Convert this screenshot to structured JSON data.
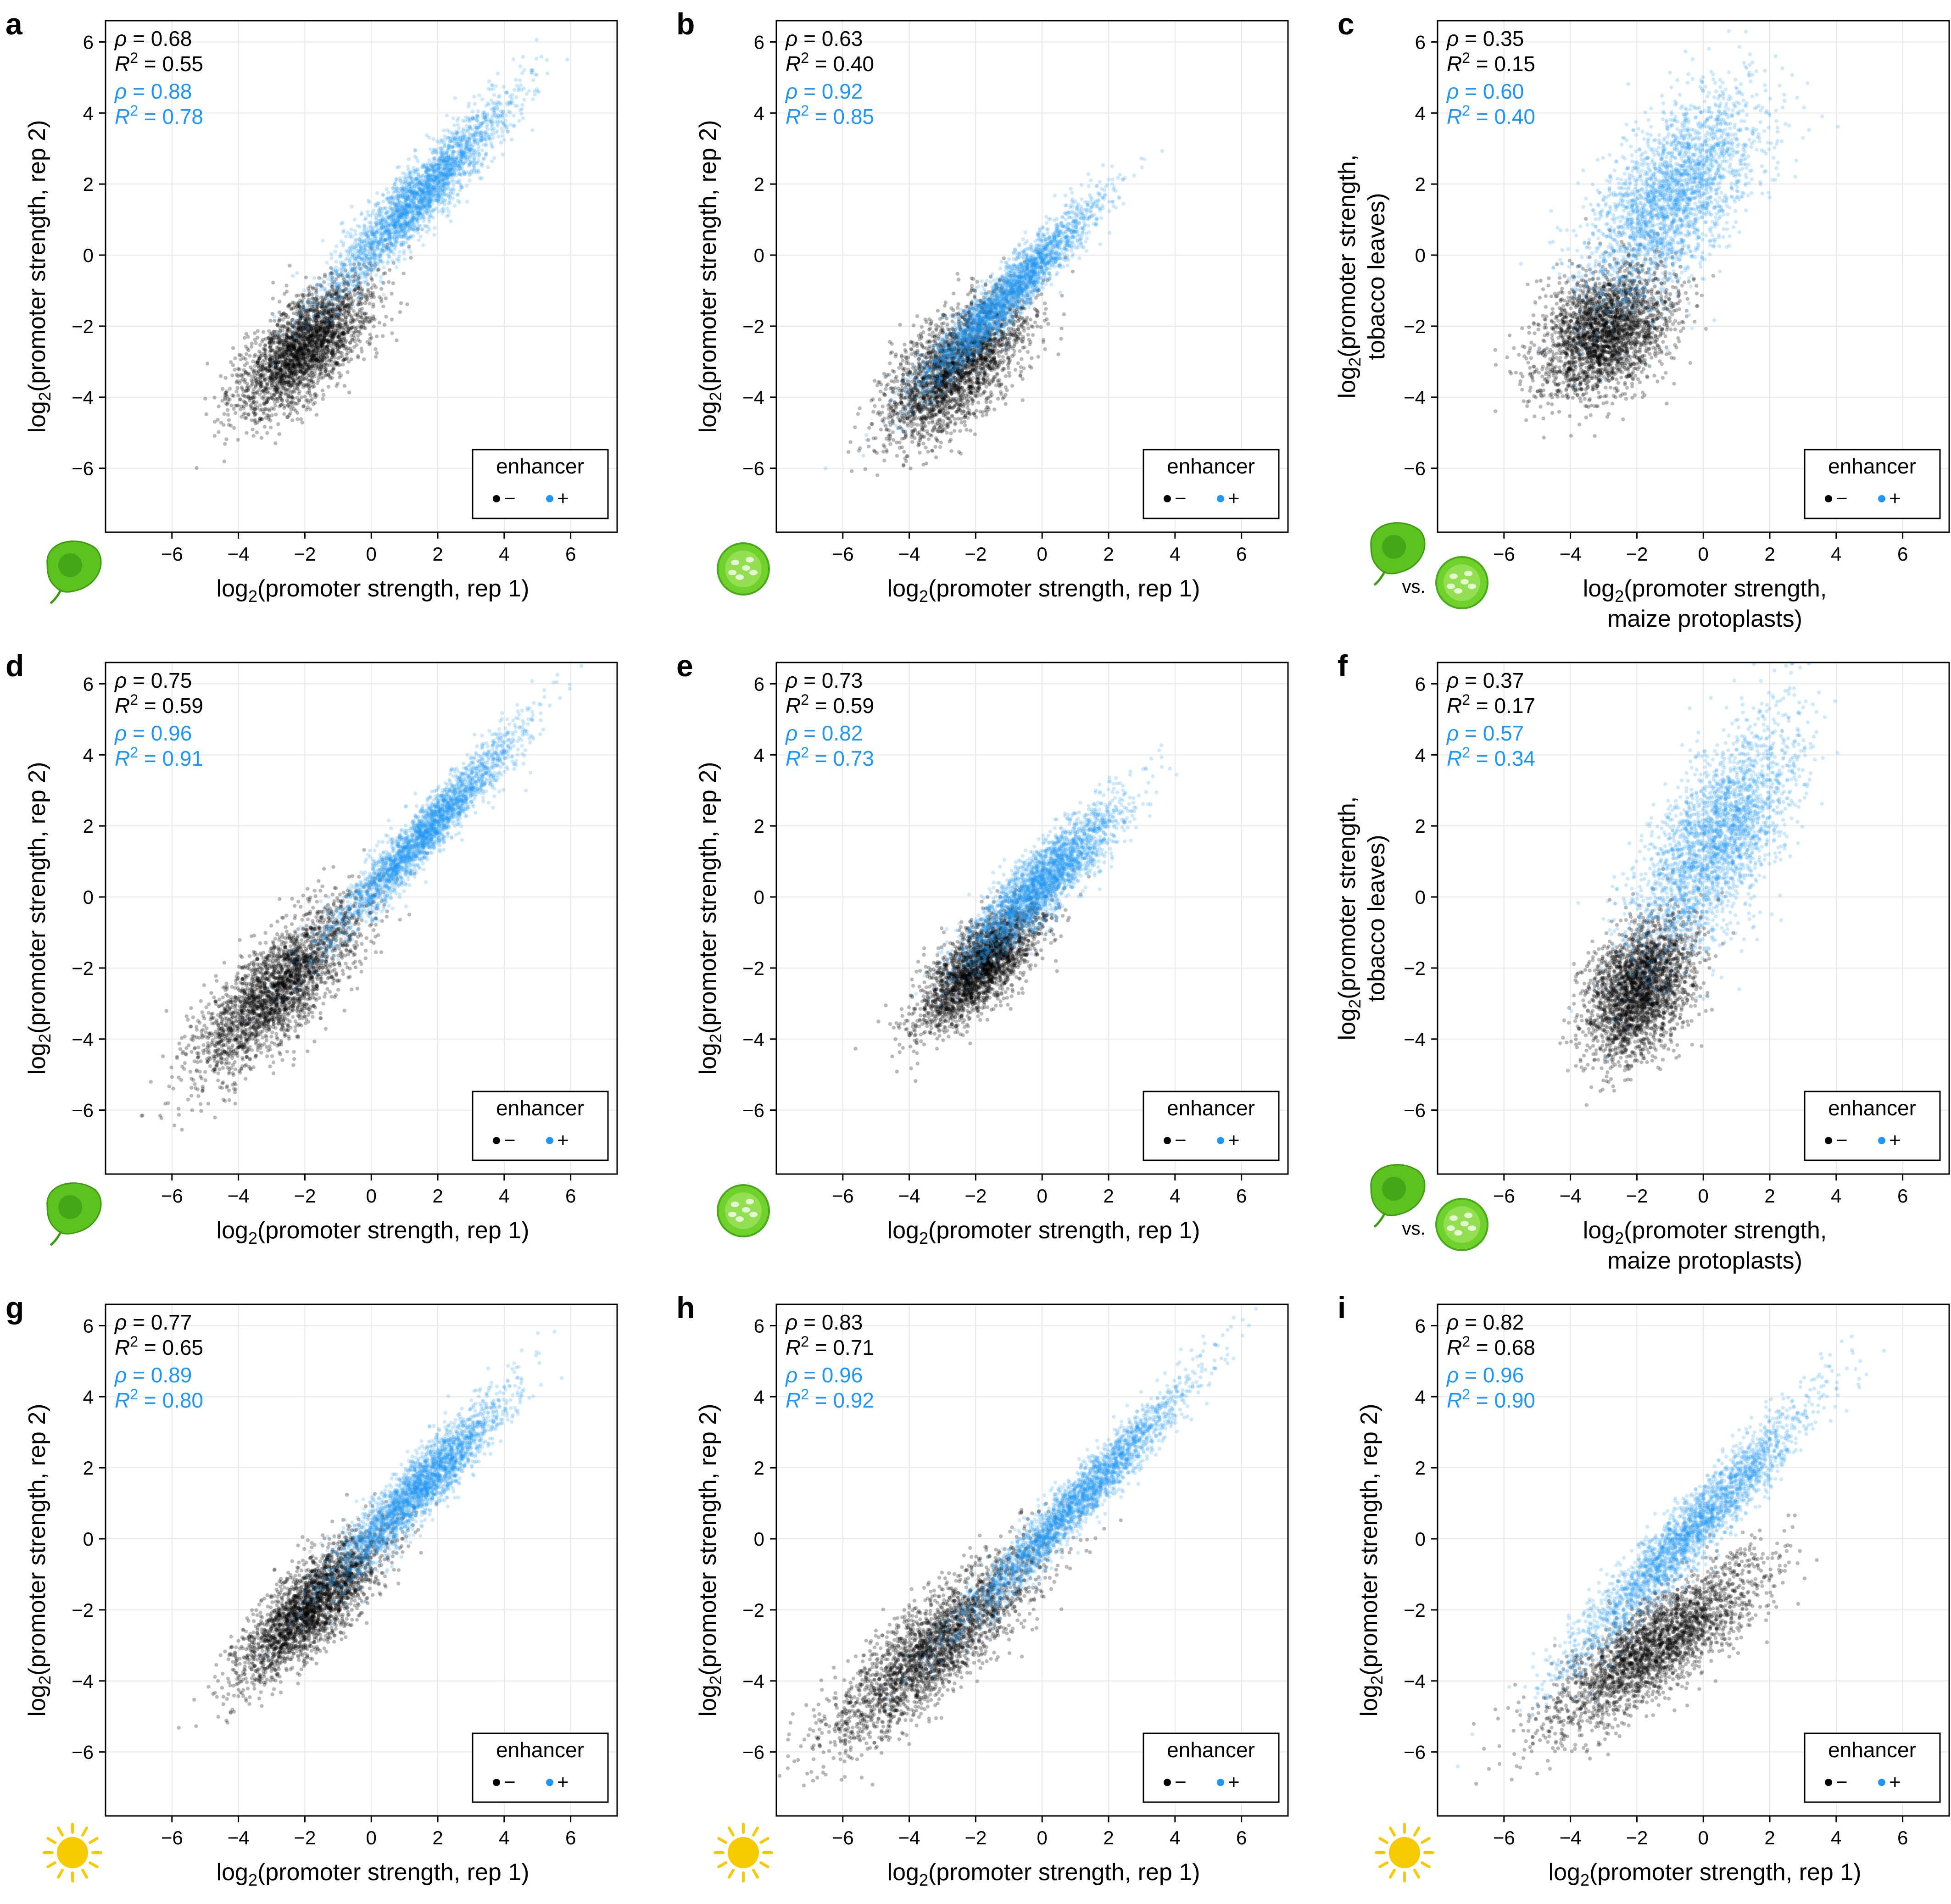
{
  "figure": {
    "enhancer_colors": {
      "minus": "#000000",
      "plus": "#2196F3"
    },
    "legend": {
      "title": "enhancer",
      "minus_label": "−",
      "plus_label": "+"
    },
    "axis_label_parts": {
      "log": "log",
      "sub2": "2",
      "sup2": "2",
      "rho": "ρ",
      "r": "R",
      "eq": " = ",
      "vs": "vs."
    }
  },
  "chart_data": [
    {
      "panel": "a",
      "type": "scatter",
      "icon": "tobacco-leaf-icon",
      "xlabel_lines": [
        "(promoter strength, rep 1)"
      ],
      "ylabel_lines": [
        "(promoter strength, rep 2)"
      ],
      "xlim": [
        -8,
        7.4
      ],
      "ylim": [
        -7.8,
        6.6
      ],
      "xticks": [
        -6,
        -4,
        -2,
        0,
        2,
        4,
        6
      ],
      "yticks": [
        -6,
        -4,
        -2,
        0,
        2,
        4,
        6
      ],
      "grid": true,
      "legend_position": "bottom-right",
      "stats": [
        {
          "series": "enhancer −",
          "rho": "0.68",
          "r2": "0.55"
        },
        {
          "series": "enhancer +",
          "rho": "0.88",
          "r2": "0.78"
        }
      ],
      "series": [
        {
          "name": "−",
          "center": [
            -2.0,
            -2.6
          ],
          "spread": [
            1.0,
            0.95
          ],
          "corr": 0.68,
          "n": 2600
        },
        {
          "name": "+",
          "center": [
            1.4,
            1.6
          ],
          "spread": [
            1.35,
            1.35
          ],
          "corr": 0.93,
          "n": 2600
        }
      ]
    },
    {
      "panel": "b",
      "type": "scatter",
      "icon": "maize-protoplast-icon",
      "xlabel_lines": [
        "(promoter strength, rep 1)"
      ],
      "ylabel_lines": [
        "(promoter strength, rep 2)"
      ],
      "xlim": [
        -8,
        7.4
      ],
      "ylim": [
        -7.8,
        6.6
      ],
      "xticks": [
        -6,
        -4,
        -2,
        0,
        2,
        4,
        6
      ],
      "yticks": [
        -6,
        -4,
        -2,
        0,
        2,
        4,
        6
      ],
      "grid": true,
      "legend_position": "bottom-right",
      "stats": [
        {
          "series": "enhancer −",
          "rho": "0.63",
          "r2": "0.40"
        },
        {
          "series": "enhancer +",
          "rho": "0.92",
          "r2": "0.85"
        }
      ],
      "series": [
        {
          "name": "−",
          "center": [
            -2.6,
            -3.2
          ],
          "spread": [
            1.05,
            1.0
          ],
          "corr": 0.63,
          "n": 2600
        },
        {
          "name": "+",
          "center": [
            -1.0,
            -1.1
          ],
          "spread": [
            1.3,
            1.3
          ],
          "corr": 0.95,
          "n": 2600
        }
      ]
    },
    {
      "panel": "c",
      "type": "scatter",
      "icon": "tobacco-vs-maize-icon",
      "xlabel_lines": [
        "(promoter strength,",
        "maize protoplasts)"
      ],
      "ylabel_lines": [
        "(promoter strength,",
        "tobacco leaves)"
      ],
      "xlim": [
        -8,
        7.4
      ],
      "ylim": [
        -7.8,
        6.6
      ],
      "xticks": [
        -6,
        -4,
        -2,
        0,
        2,
        4,
        6
      ],
      "yticks": [
        -6,
        -4,
        -2,
        0,
        2,
        4,
        6
      ],
      "grid": true,
      "legend_position": "bottom-right",
      "stats": [
        {
          "series": "enhancer −",
          "rho": "0.35",
          "r2": "0.15"
        },
        {
          "series": "enhancer +",
          "rho": "0.60",
          "r2": "0.40"
        }
      ],
      "series": [
        {
          "name": "−",
          "center": [
            -3.0,
            -2.2
          ],
          "spread": [
            1.0,
            0.9
          ],
          "corr": 0.35,
          "n": 2600
        },
        {
          "name": "+",
          "center": [
            -1.0,
            1.6
          ],
          "spread": [
            1.3,
            1.5
          ],
          "corr": 0.62,
          "n": 2600
        }
      ]
    },
    {
      "panel": "d",
      "type": "scatter",
      "icon": "tobacco-leaf-icon",
      "xlabel_lines": [
        "(promoter strength, rep 1)"
      ],
      "ylabel_lines": [
        "(promoter strength, rep 2)"
      ],
      "xlim": [
        -8,
        7.4
      ],
      "ylim": [
        -7.8,
        6.6
      ],
      "xticks": [
        -6,
        -4,
        -2,
        0,
        2,
        4,
        6
      ],
      "yticks": [
        -6,
        -4,
        -2,
        0,
        2,
        4,
        6
      ],
      "grid": true,
      "legend_position": "bottom-right",
      "stats": [
        {
          "series": "enhancer −",
          "rho": "0.75",
          "r2": "0.59"
        },
        {
          "series": "enhancer +",
          "rho": "0.96",
          "r2": "0.91"
        }
      ],
      "series": [
        {
          "name": "−",
          "center": [
            -2.8,
            -2.6
          ],
          "spread": [
            1.25,
            1.2
          ],
          "corr": 0.78,
          "n": 2600
        },
        {
          "name": "+",
          "center": [
            1.6,
            1.8
          ],
          "spread": [
            1.4,
            1.4
          ],
          "corr": 0.96,
          "n": 2600
        }
      ]
    },
    {
      "panel": "e",
      "type": "scatter",
      "icon": "maize-protoplast-icon",
      "xlabel_lines": [
        "(promoter strength, rep 1)"
      ],
      "ylabel_lines": [
        "(promoter strength, rep 2)"
      ],
      "xlim": [
        -8,
        7.4
      ],
      "ylim": [
        -7.8,
        6.6
      ],
      "xticks": [
        -6,
        -4,
        -2,
        0,
        2,
        4,
        6
      ],
      "yticks": [
        -6,
        -4,
        -2,
        0,
        2,
        4,
        6
      ],
      "grid": true,
      "legend_position": "bottom-right",
      "stats": [
        {
          "series": "enhancer −",
          "rho": "0.73",
          "r2": "0.59"
        },
        {
          "series": "enhancer +",
          "rho": "0.82",
          "r2": "0.73"
        }
      ],
      "series": [
        {
          "name": "−",
          "center": [
            -1.9,
            -2.0
          ],
          "spread": [
            0.9,
            0.85
          ],
          "corr": 0.73,
          "n": 2600
        },
        {
          "name": "+",
          "center": [
            0.0,
            0.4
          ],
          "spread": [
            1.15,
            1.1
          ],
          "corr": 0.88,
          "n": 2600
        }
      ]
    },
    {
      "panel": "f",
      "type": "scatter",
      "icon": "tobacco-vs-maize-icon",
      "xlabel_lines": [
        "(promoter strength,",
        "maize protoplasts)"
      ],
      "ylabel_lines": [
        "(promoter strength,",
        "tobacco leaves)"
      ],
      "xlim": [
        -8,
        7.4
      ],
      "ylim": [
        -7.8,
        6.6
      ],
      "xticks": [
        -6,
        -4,
        -2,
        0,
        2,
        4,
        6
      ],
      "yticks": [
        -6,
        -4,
        -2,
        0,
        2,
        4,
        6
      ],
      "grid": true,
      "legend_position": "bottom-right",
      "stats": [
        {
          "series": "enhancer −",
          "rho": "0.37",
          "r2": "0.17"
        },
        {
          "series": "enhancer +",
          "rho": "0.57",
          "r2": "0.34"
        }
      ],
      "series": [
        {
          "name": "−",
          "center": [
            -1.9,
            -2.6
          ],
          "spread": [
            0.8,
            1.0
          ],
          "corr": 0.4,
          "n": 2600
        },
        {
          "name": "+",
          "center": [
            0.4,
            1.6
          ],
          "spread": [
            1.2,
            1.6
          ],
          "corr": 0.65,
          "n": 2600
        }
      ]
    },
    {
      "panel": "g",
      "type": "scatter",
      "icon": "sun-icon",
      "xlabel_lines": [
        "(promoter strength, rep 1)"
      ],
      "ylabel_lines": [
        "(promoter strength, rep 2)"
      ],
      "xlim": [
        -8,
        7.4
      ],
      "ylim": [
        -7.8,
        6.6
      ],
      "xticks": [
        -6,
        -4,
        -2,
        0,
        2,
        4,
        6
      ],
      "yticks": [
        -6,
        -4,
        -2,
        0,
        2,
        4,
        6
      ],
      "grid": true,
      "legend_position": "bottom-right",
      "stats": [
        {
          "series": "enhancer −",
          "rho": "0.77",
          "r2": "0.65"
        },
        {
          "series": "enhancer +",
          "rho": "0.89",
          "r2": "0.80"
        }
      ],
      "series": [
        {
          "name": "−",
          "center": [
            -1.8,
            -1.9
          ],
          "spread": [
            1.1,
            1.05
          ],
          "corr": 0.8,
          "n": 2600
        },
        {
          "name": "+",
          "center": [
            1.4,
            1.4
          ],
          "spread": [
            1.25,
            1.25
          ],
          "corr": 0.93,
          "n": 2600
        }
      ]
    },
    {
      "panel": "h",
      "type": "scatter",
      "icon": "sun-icon",
      "xlabel_lines": [
        "(promoter strength, rep 1)"
      ],
      "ylabel_lines": [
        "(promoter strength, rep 2)"
      ],
      "xlim": [
        -8,
        7.4
      ],
      "ylim": [
        -7.8,
        6.6
      ],
      "xticks": [
        -6,
        -4,
        -2,
        0,
        2,
        4,
        6
      ],
      "yticks": [
        -6,
        -4,
        -2,
        0,
        2,
        4,
        6
      ],
      "grid": true,
      "legend_position": "bottom-right",
      "stats": [
        {
          "series": "enhancer −",
          "rho": "0.83",
          "r2": "0.71"
        },
        {
          "series": "enhancer +",
          "rho": "0.96",
          "r2": "0.92"
        }
      ],
      "series": [
        {
          "name": "−",
          "center": [
            -3.2,
            -3.0
          ],
          "spread": [
            1.6,
            1.4
          ],
          "corr": 0.85,
          "n": 2600
        },
        {
          "name": "+",
          "center": [
            1.0,
            1.0
          ],
          "spread": [
            1.7,
            1.7
          ],
          "corr": 0.97,
          "n": 2600
        }
      ]
    },
    {
      "panel": "i",
      "type": "scatter",
      "icon": "sun-icon",
      "xlabel_lines": [
        "(promoter strength, rep 1)"
      ],
      "ylabel_lines": [
        "(promoter strength, rep 2)"
      ],
      "xlim": [
        -8,
        7.4
      ],
      "ylim": [
        -7.8,
        6.6
      ],
      "xticks": [
        -6,
        -4,
        -2,
        0,
        2,
        4,
        6
      ],
      "yticks": [
        -6,
        -4,
        -2,
        0,
        2,
        4,
        6
      ],
      "grid": true,
      "legend_position": "bottom-right",
      "stats": [
        {
          "series": "enhancer −",
          "rho": "0.82",
          "r2": "0.68"
        },
        {
          "series": "enhancer +",
          "rho": "0.96",
          "r2": "0.90"
        }
      ],
      "series": [
        {
          "name": "−",
          "center": [
            -1.4,
            -3.0
          ],
          "spread": [
            1.6,
            1.2
          ],
          "corr": 0.82,
          "n": 2600
        },
        {
          "name": "+",
          "center": [
            -0.4,
            0.2
          ],
          "spread": [
            1.8,
            1.8
          ],
          "corr": 0.96,
          "n": 2600
        }
      ]
    }
  ]
}
